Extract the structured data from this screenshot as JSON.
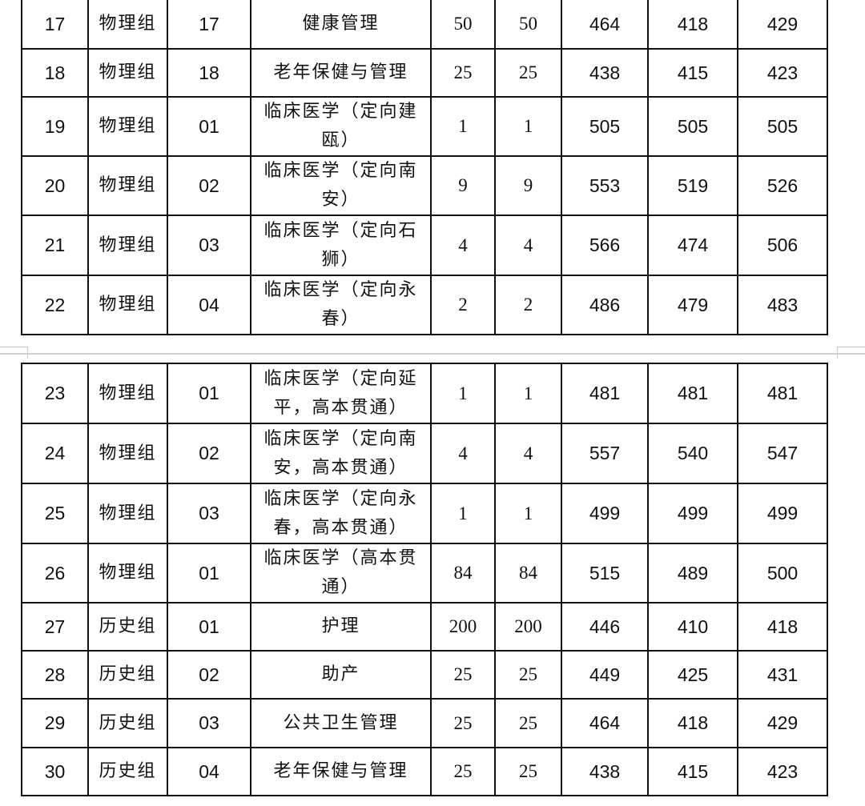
{
  "tables": [
    {
      "rows": [
        [
          "17",
          "物理组",
          "17",
          "健康管理",
          "50",
          "50",
          "464",
          "418",
          "429"
        ],
        [
          "18",
          "物理组",
          "18",
          "老年保健与管理",
          "25",
          "25",
          "438",
          "415",
          "423"
        ],
        [
          "19",
          "物理组",
          "01",
          "临床医学（定向建瓯）",
          "1",
          "1",
          "505",
          "505",
          "505"
        ],
        [
          "20",
          "物理组",
          "02",
          "临床医学（定向南安）",
          "9",
          "9",
          "553",
          "519",
          "526"
        ],
        [
          "21",
          "物理组",
          "03",
          "临床医学（定向石狮）",
          "4",
          "4",
          "566",
          "474",
          "506"
        ],
        [
          "22",
          "物理组",
          "04",
          "临床医学（定向永春）",
          "2",
          "2",
          "486",
          "479",
          "483"
        ]
      ]
    },
    {
      "rows": [
        [
          "23",
          "物理组",
          "01",
          "临床医学（定向延平，高本贯通）",
          "1",
          "1",
          "481",
          "481",
          "481"
        ],
        [
          "24",
          "物理组",
          "02",
          "临床医学（定向南安，高本贯通）",
          "4",
          "4",
          "557",
          "540",
          "547"
        ],
        [
          "25",
          "物理组",
          "03",
          "临床医学（定向永春，高本贯通）",
          "1",
          "1",
          "499",
          "499",
          "499"
        ],
        [
          "26",
          "物理组",
          "01",
          "临床医学（高本贯通）",
          "84",
          "84",
          "515",
          "489",
          "500"
        ],
        [
          "27",
          "历史组",
          "01",
          "护理",
          "200",
          "200",
          "446",
          "410",
          "418"
        ],
        [
          "28",
          "历史组",
          "02",
          "助产",
          "25",
          "25",
          "449",
          "425",
          "431"
        ],
        [
          "29",
          "历史组",
          "03",
          "公共卫生管理",
          "25",
          "25",
          "464",
          "418",
          "429"
        ],
        [
          "30",
          "历史组",
          "04",
          "老年保健与管理",
          "25",
          "25",
          "438",
          "415",
          "423"
        ]
      ]
    }
  ]
}
